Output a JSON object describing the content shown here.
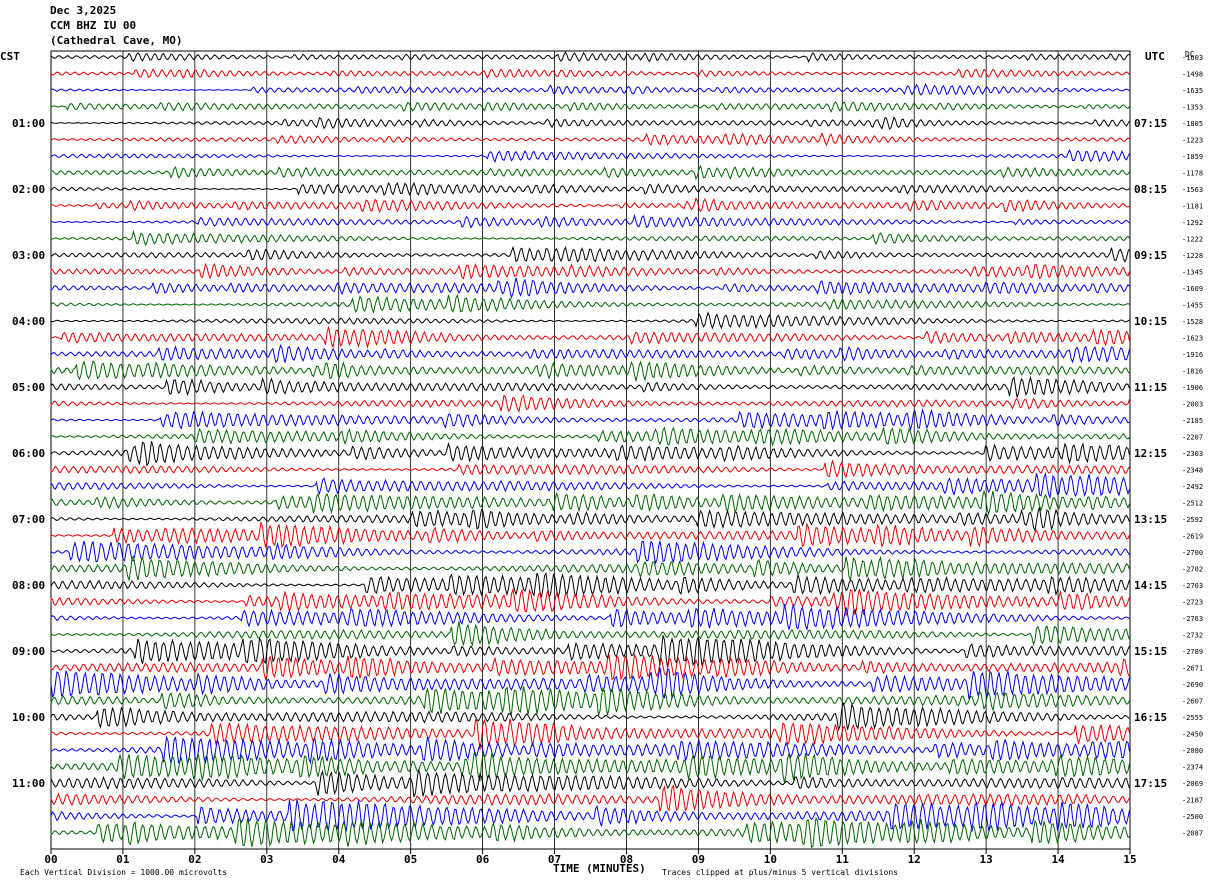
{
  "header": {
    "date": "Dec 3,2025",
    "station": "CCM BHZ IU 00",
    "location": "(Cathedral Cave, MO)"
  },
  "left_axis_label": "CST",
  "right_axis_label": "UTC",
  "dc_label": "DC",
  "footer": {
    "scale_note": "Each Vertical Division = 1000.00 microvolts",
    "xlabel": "TIME (MINUTES)",
    "clip_note": "Traces clipped at plus/minus 5 vertical divisions"
  },
  "chart_data": {
    "type": "line",
    "title": "Dec 3,2025 CCM BHZ IU 00 (Cathedral Cave, MO)",
    "xlabel": "TIME (MINUTES)",
    "x_ticks": [
      "00",
      "01",
      "02",
      "03",
      "04",
      "05",
      "06",
      "07",
      "08",
      "09",
      "10",
      "11",
      "12",
      "13",
      "14",
      "15"
    ],
    "xlim": [
      0,
      15
    ],
    "left_time_labels": [
      "01:00",
      "02:00",
      "03:00",
      "04:00",
      "05:00",
      "06:00",
      "07:00",
      "08:00",
      "09:00",
      "10:00",
      "11:00"
    ],
    "right_time_labels": [
      "07:15",
      "08:15",
      "09:15",
      "10:15",
      "11:15",
      "12:15",
      "13:15",
      "14:15",
      "15:15",
      "16:15",
      "17:15"
    ],
    "trace_colors": [
      "#000000",
      "#e00000",
      "#0000e0",
      "#006400"
    ],
    "trace_count": 48,
    "dc_offsets": [
      "-1603",
      "-1498",
      "-1635",
      "-1353",
      "-1805",
      "-1223",
      "-1859",
      "-1178",
      "-1563",
      "-1181",
      "-1292",
      "-1222",
      "-1228",
      "-1345",
      "-1609",
      "-1455",
      "-1528",
      "-1623",
      "-1916",
      "-1816",
      "-1906",
      "-2003",
      "-2185",
      "-2207",
      "-2303",
      "-2348",
      "-2492",
      "-2512",
      "-2592",
      "-2619",
      "-2700",
      "-2702",
      "-2703",
      "-2723",
      "-2763",
      "-2732",
      "-2789",
      "-2671",
      "-2690",
      "-2607",
      "-2555",
      "-2450",
      "-2080",
      "-2374",
      "-2069",
      "-2187",
      "-2500",
      "-2087"
    ],
    "grid": true
  }
}
